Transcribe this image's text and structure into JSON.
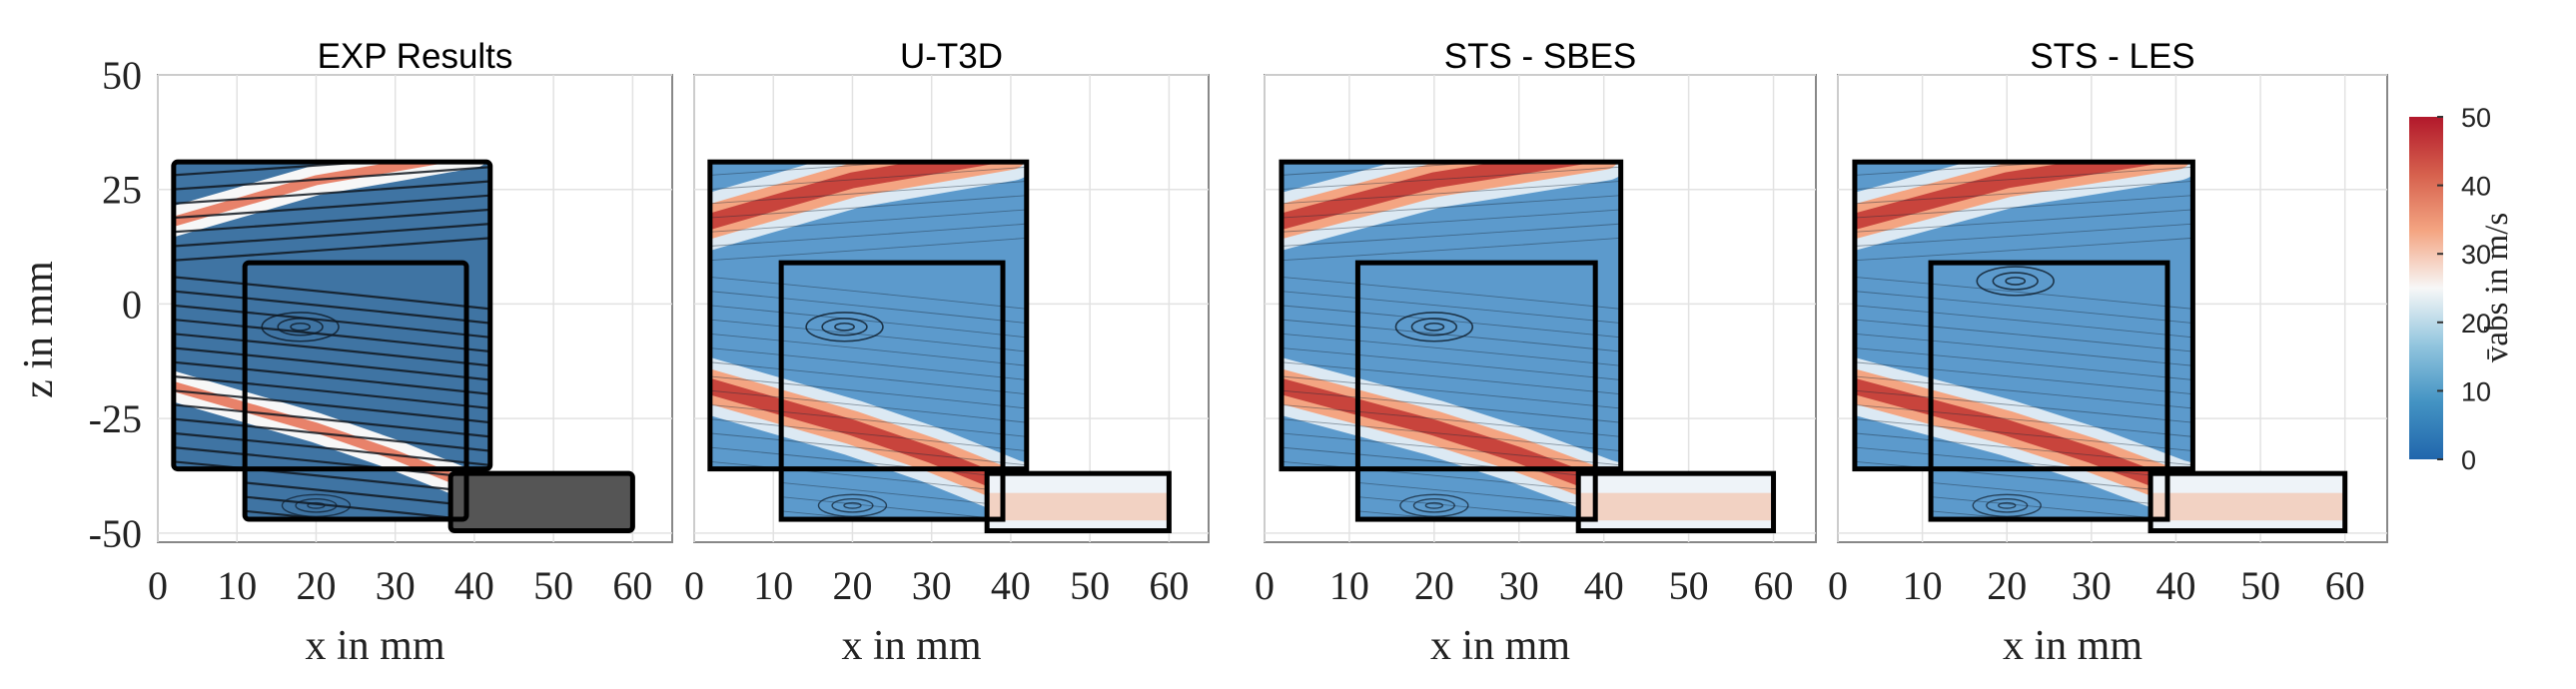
{
  "chart_data": {
    "type": "heatmap",
    "description_units": {
      "x": "mm",
      "z": "mm",
      "v": "m/s"
    },
    "panels": [
      {
        "title": "EXP Results",
        "style": "streamline-experiment"
      },
      {
        "title": "U-T3D",
        "style": "contour"
      },
      {
        "title": "STS - SBES",
        "style": "contour"
      },
      {
        "title": "STS - LES",
        "style": "contour"
      }
    ],
    "xlabel": "x in mm",
    "ylabel": "z in mm",
    "xlim": [
      0,
      65
    ],
    "ylim": [
      -52,
      50
    ],
    "xticks": [
      0,
      10,
      20,
      30,
      40,
      50,
      60
    ],
    "yticks": [
      50,
      25,
      0,
      -25,
      -50
    ],
    "ytick_labels": [
      "50",
      "25",
      "0",
      "-25",
      "-50"
    ],
    "measurement_windows": [
      {
        "x": [
          2,
          42
        ],
        "z": [
          -36,
          31
        ]
      },
      {
        "x": [
          11,
          39
        ],
        "z": [
          -47,
          9
        ]
      },
      {
        "x": [
          37,
          60
        ],
        "z": [
          -49.5,
          -37
        ]
      }
    ],
    "jet_max_velocity_bands": [
      {
        "name": "upper jet",
        "path": [
          [
            0,
            17
          ],
          [
            10,
            22
          ],
          [
            20,
            27
          ],
          [
            30,
            30
          ],
          [
            40,
            33
          ]
        ]
      },
      {
        "name": "lower jet",
        "path": [
          [
            0,
            -17
          ],
          [
            10,
            -22
          ],
          [
            20,
            -27
          ],
          [
            30,
            -33
          ],
          [
            40,
            -40
          ],
          [
            50,
            -45
          ],
          [
            60,
            -49
          ]
        ]
      }
    ],
    "colorbar": {
      "label": "v̄abs in m/s",
      "range": [
        0,
        50
      ],
      "ticks": [
        0,
        10,
        20,
        30,
        40,
        50
      ],
      "colors": [
        "#2166ac",
        "#4393c3",
        "#92c5de",
        "#f7f7f7",
        "#f4a582",
        "#d6604d",
        "#b2182b"
      ]
    }
  }
}
